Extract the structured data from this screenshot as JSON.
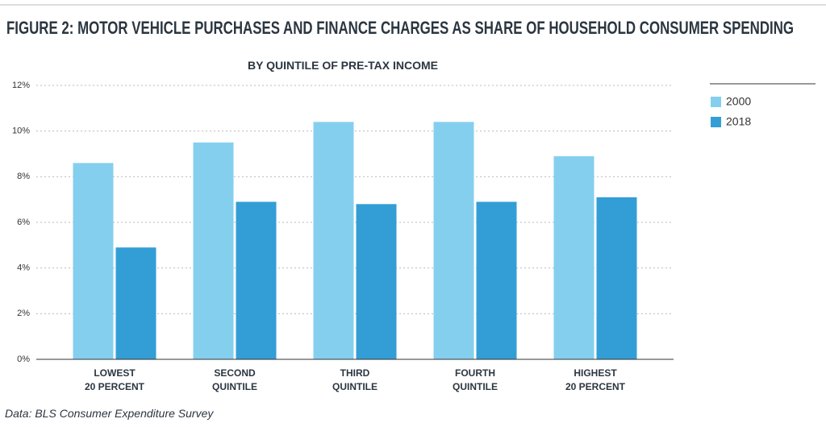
{
  "chart_data": {
    "type": "bar",
    "title": "FIGURE 2: MOTOR VEHICLE PURCHASES AND FINANCE CHARGES AS SHARE OF HOUSEHOLD CONSUMER SPENDING",
    "subtitle": "BY QUINTILE OF PRE-TAX INCOME",
    "source": "Data: BLS Consumer Expenditure Survey",
    "categories": [
      [
        "LOWEST",
        "20 PERCENT"
      ],
      [
        "SECOND",
        "QUINTILE"
      ],
      [
        "THIRD",
        "QUINTILE"
      ],
      [
        "FOURTH",
        "QUINTILE"
      ],
      [
        "HIGHEST",
        "20 PERCENT"
      ]
    ],
    "series": [
      {
        "name": "2000",
        "color": "#85cfee",
        "values": [
          8.6,
          9.5,
          10.4,
          10.4,
          8.9
        ]
      },
      {
        "name": "2018",
        "color": "#339ed6",
        "values": [
          4.9,
          6.9,
          6.8,
          6.9,
          7.1
        ]
      }
    ],
    "ylim": [
      0,
      12
    ],
    "yticks": [
      {
        "value": 0,
        "label": "0%"
      },
      {
        "value": 2,
        "label": "2%"
      },
      {
        "value": 4,
        "label": "4%"
      },
      {
        "value": 6,
        "label": "6%"
      },
      {
        "value": 8,
        "label": "8%"
      },
      {
        "value": 10,
        "label": "10%"
      },
      {
        "value": 12,
        "label": "12%"
      }
    ],
    "grid": true,
    "legend": "right"
  }
}
